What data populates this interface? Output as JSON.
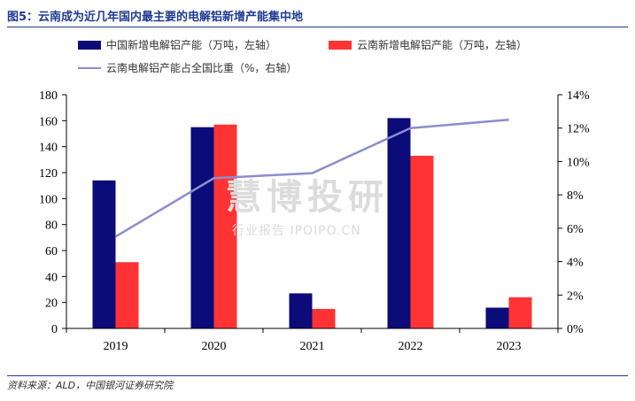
{
  "header": {
    "title": "图5：云南成为近几年国内最主要的电解铝新增产能集中地"
  },
  "footer": {
    "source": "资料来源：ALD，中国银河证券研究院"
  },
  "watermark": {
    "line1": "慧博投研",
    "line2": "行业报告 IPOIPO.CN"
  },
  "chart_data": {
    "type": "bar",
    "categories": [
      "2019",
      "2020",
      "2021",
      "2022",
      "2023"
    ],
    "series": [
      {
        "name": "中国新增电解铝产能（万吨，左轴）",
        "type": "bar",
        "axis": "left",
        "color": "#0b0b7a",
        "values": [
          114,
          155,
          27,
          162,
          16
        ]
      },
      {
        "name": "云南新增电解铝产能（万吨，左轴）",
        "type": "bar",
        "axis": "left",
        "color": "#ff3333",
        "values": [
          51,
          157,
          15,
          133,
          24
        ]
      },
      {
        "name": "云南电解铝产能占全国比重（%，右轴）",
        "type": "line",
        "axis": "right",
        "color": "#8c8cd0",
        "values": [
          5.5,
          9.0,
          9.3,
          12.0,
          12.5
        ]
      }
    ],
    "y_left": {
      "min": 0,
      "max": 180,
      "ticks": [
        0,
        20,
        40,
        60,
        80,
        100,
        120,
        140,
        160,
        180
      ]
    },
    "y_right": {
      "min": 0,
      "max": 14,
      "ticks": [
        "0%",
        "2%",
        "4%",
        "6%",
        "8%",
        "10%",
        "12%",
        "14%"
      ]
    },
    "grid": false,
    "legend_position": "top"
  }
}
